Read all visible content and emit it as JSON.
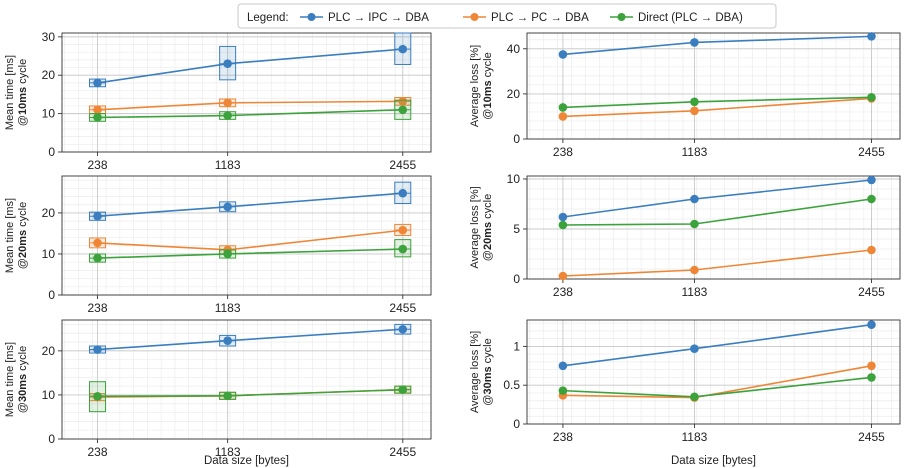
{
  "legend": {
    "title": "Legend:",
    "entries": [
      "PLC → IPC → DBA",
      "PLC → PC → DBA",
      "Direct (PLC → DBA)"
    ]
  },
  "colors": {
    "PLC → IPC → DBA": "#3a7ebf",
    "PLC → PC → DBA": "#ef8636",
    "Direct (PLC → DBA)": "#3ca23c"
  },
  "chart_data": [
    {
      "type": "line",
      "panel": "mean-10ms",
      "ylabel_line1": "Mean time [ms]",
      "ylabel_prefix": "@",
      "ylabel_bold": "10ms",
      "ylabel_suffix": " cycle",
      "xlabel": "",
      "x": [
        238,
        1183,
        2455
      ],
      "xlim": [
        -20,
        2660
      ],
      "ylim": [
        0,
        31
      ],
      "yticks": [
        0,
        10,
        20,
        30
      ],
      "series": [
        {
          "name": "PLC → IPC → DBA",
          "values": [
            18,
            23,
            26.8
          ],
          "box_lo": [
            17,
            18.8,
            22.8
          ],
          "box_hi": [
            19,
            27.5,
            31.0
          ]
        },
        {
          "name": "PLC → PC → DBA",
          "values": [
            11,
            12.8,
            13.2
          ],
          "box_lo": [
            10,
            11.8,
            12.2
          ],
          "box_hi": [
            12,
            13.8,
            14.2
          ]
        },
        {
          "name": "Direct (PLC → DBA)",
          "values": [
            9,
            9.5,
            11
          ],
          "box_lo": [
            8,
            8.5,
            8.5
          ],
          "box_hi": [
            10,
            10.5,
            13.5
          ]
        }
      ]
    },
    {
      "type": "line",
      "panel": "loss-10ms",
      "ylabel_line1": "Average loss [%]",
      "ylabel_prefix": "@",
      "ylabel_bold": "10ms",
      "ylabel_suffix": " cycle",
      "xlabel": "",
      "x": [
        238,
        1183,
        2455
      ],
      "xlim": [
        -20,
        2660
      ],
      "ylim": [
        0,
        47
      ],
      "yticks": [
        0,
        20,
        40
      ],
      "series": [
        {
          "name": "PLC → IPC → DBA",
          "values": [
            37.5,
            42.8,
            45.5
          ]
        },
        {
          "name": "PLC → PC → DBA",
          "values": [
            10,
            12.5,
            18
          ]
        },
        {
          "name": "Direct (PLC → DBA)",
          "values": [
            14,
            16.5,
            18.5
          ]
        }
      ]
    },
    {
      "type": "line",
      "panel": "mean-20ms",
      "ylabel_line1": "Mean time [ms]",
      "ylabel_prefix": "@",
      "ylabel_bold": "20ms",
      "ylabel_suffix": " cycle",
      "xlabel": "",
      "x": [
        238,
        1183,
        2455
      ],
      "xlim": [
        -20,
        2660
      ],
      "ylim": [
        0,
        29
      ],
      "yticks": [
        0,
        10,
        20
      ],
      "series": [
        {
          "name": "PLC → IPC → DBA",
          "values": [
            19.2,
            21.5,
            24.8
          ],
          "box_lo": [
            18.2,
            20.3,
            22.3
          ],
          "box_hi": [
            20.2,
            22.7,
            27.5
          ]
        },
        {
          "name": "PLC → PC → DBA",
          "values": [
            12.7,
            11,
            15.8
          ],
          "box_lo": [
            11.5,
            10,
            14.5
          ],
          "box_hi": [
            13.9,
            12,
            17.2
          ]
        },
        {
          "name": "Direct (PLC → DBA)",
          "values": [
            9,
            10,
            11.2
          ],
          "box_lo": [
            8,
            9,
            9.3
          ],
          "box_hi": [
            10,
            11,
            13.5
          ]
        }
      ]
    },
    {
      "type": "line",
      "panel": "loss-20ms",
      "ylabel_line1": "Average loss [%]",
      "ylabel_prefix": "@",
      "ylabel_bold": "20ms",
      "ylabel_suffix": " cycle",
      "xlabel": "",
      "x": [
        238,
        1183,
        2455
      ],
      "xlim": [
        -20,
        2660
      ],
      "ylim": [
        0,
        10.3
      ],
      "yticks": [
        0,
        5,
        10
      ],
      "series": [
        {
          "name": "PLC → IPC → DBA",
          "values": [
            6.2,
            8,
            9.9
          ]
        },
        {
          "name": "PLC → PC → DBA",
          "values": [
            0.3,
            0.9,
            2.9
          ]
        },
        {
          "name": "Direct (PLC → DBA)",
          "values": [
            5.4,
            5.5,
            8
          ]
        }
      ]
    },
    {
      "type": "line",
      "panel": "mean-30ms",
      "ylabel_line1": "Mean time [ms]",
      "ylabel_prefix": "@",
      "ylabel_bold": "30ms",
      "ylabel_suffix": " cycle",
      "xlabel": "Data size [bytes]",
      "x": [
        238,
        1183,
        2455
      ],
      "xlim": [
        -20,
        2660
      ],
      "ylim": [
        0,
        27
      ],
      "yticks": [
        0,
        10,
        20
      ],
      "series": [
        {
          "name": "PLC → IPC → DBA",
          "values": [
            20.3,
            22.3,
            24.9
          ],
          "box_lo": [
            19.5,
            21.1,
            23.8
          ],
          "box_hi": [
            21.1,
            23.5,
            26.0
          ]
        },
        {
          "name": "PLC → PC → DBA",
          "values": [
            9.5,
            9.8,
            11.2
          ],
          "box_lo": [
            8.7,
            9.0,
            10.4
          ],
          "box_hi": [
            10.3,
            10.6,
            12.0
          ]
        },
        {
          "name": "Direct (PLC → DBA)",
          "values": [
            9.7,
            9.8,
            11.2
          ],
          "box_lo": [
            6.2,
            9.0,
            10.4
          ],
          "box_hi": [
            13.0,
            10.6,
            12.0
          ]
        }
      ]
    },
    {
      "type": "line",
      "panel": "loss-30ms",
      "ylabel_line1": "Average loss [%]",
      "ylabel_prefix": "@",
      "ylabel_bold": "30ms",
      "ylabel_suffix": " cycle",
      "xlabel": "Data size [bytes]",
      "x": [
        238,
        1183,
        2455
      ],
      "xlim": [
        -20,
        2660
      ],
      "ylim": [
        0,
        1.34
      ],
      "yticks": [
        0.0,
        0.5,
        1.0
      ],
      "series": [
        {
          "name": "PLC → IPC → DBA",
          "values": [
            0.75,
            0.97,
            1.28
          ]
        },
        {
          "name": "PLC → PC → DBA",
          "values": [
            0.37,
            0.34,
            0.75
          ]
        },
        {
          "name": "Direct (PLC → DBA)",
          "values": [
            0.43,
            0.35,
            0.6
          ]
        }
      ]
    }
  ]
}
